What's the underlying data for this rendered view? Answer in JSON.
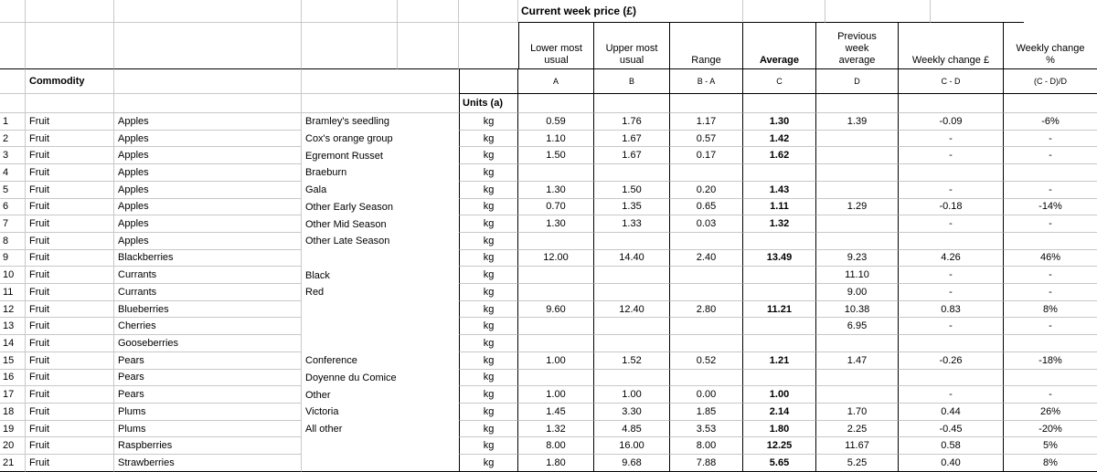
{
  "title": "Current week price (£)",
  "left_header": {
    "commodity": "Commodity",
    "units": "Units (a)"
  },
  "columns": [
    {
      "label": "Lower most\nusual",
      "letter": "A"
    },
    {
      "label": "Upper most\nusual",
      "letter": "B"
    },
    {
      "label": "Range",
      "letter": "B - A"
    },
    {
      "label": "Average",
      "letter": "C"
    },
    {
      "label": "Previous\nweek\naverage",
      "letter": "D"
    },
    {
      "label": "Weekly change £",
      "letter": "C - D"
    },
    {
      "label": "Weekly change\n%",
      "letter": "(C - D)/D"
    }
  ],
  "rows": [
    {
      "num": "1",
      "category": "Fruit",
      "type": "Apples",
      "variety": "Bramley's seedling",
      "units": "kg",
      "lower": "0.59",
      "upper": "1.76",
      "range": "1.17",
      "average": "1.30",
      "prev": "1.39",
      "change_gbp": "-0.09",
      "change_pct": "-6%"
    },
    {
      "num": "2",
      "category": "Fruit",
      "type": "Apples",
      "variety": "Cox's orange group",
      "units": "kg",
      "lower": "1.10",
      "upper": "1.67",
      "range": "0.57",
      "average": "1.42",
      "prev": "",
      "change_gbp": "-",
      "change_pct": "-"
    },
    {
      "num": "3",
      "category": "Fruit",
      "type": "Apples",
      "variety": "Egremont Russet",
      "units": "kg",
      "lower": "1.50",
      "upper": "1.67",
      "range": "0.17",
      "average": "1.62",
      "prev": "",
      "change_gbp": "-",
      "change_pct": "-"
    },
    {
      "num": "4",
      "category": "Fruit",
      "type": "Apples",
      "variety": "Braeburn",
      "units": "kg",
      "lower": "",
      "upper": "",
      "range": "",
      "average": "",
      "prev": "",
      "change_gbp": "",
      "change_pct": ""
    },
    {
      "num": "5",
      "category": "Fruit",
      "type": "Apples",
      "variety": "Gala",
      "units": "kg",
      "lower": "1.30",
      "upper": "1.50",
      "range": "0.20",
      "average": "1.43",
      "prev": "",
      "change_gbp": "-",
      "change_pct": "-"
    },
    {
      "num": "6",
      "category": "Fruit",
      "type": "Apples",
      "variety": "Other Early Season",
      "units": "kg",
      "lower": "0.70",
      "upper": "1.35",
      "range": "0.65",
      "average": "1.11",
      "prev": "1.29",
      "change_gbp": "-0.18",
      "change_pct": "-14%"
    },
    {
      "num": "7",
      "category": "Fruit",
      "type": "Apples",
      "variety": "Other Mid Season",
      "units": "kg",
      "lower": "1.30",
      "upper": "1.33",
      "range": "0.03",
      "average": "1.32",
      "prev": "",
      "change_gbp": "-",
      "change_pct": "-"
    },
    {
      "num": "8",
      "category": "Fruit",
      "type": "Apples",
      "variety": "Other Late Season",
      "units": "kg",
      "lower": "",
      "upper": "",
      "range": "",
      "average": "",
      "prev": "",
      "change_gbp": "",
      "change_pct": ""
    },
    {
      "num": "9",
      "category": "Fruit",
      "type": "Blackberries",
      "variety": "",
      "units": "kg",
      "lower": "12.00",
      "upper": "14.40",
      "range": "2.40",
      "average": "13.49",
      "prev": "9.23",
      "change_gbp": "4.26",
      "change_pct": "46%"
    },
    {
      "num": "10",
      "category": "Fruit",
      "type": "Currants",
      "variety": "Black",
      "units": "kg",
      "lower": "",
      "upper": "",
      "range": "",
      "average": "",
      "prev": "11.10",
      "change_gbp": "-",
      "change_pct": "-"
    },
    {
      "num": "11",
      "category": "Fruit",
      "type": "Currants",
      "variety": "Red",
      "units": "kg",
      "lower": "",
      "upper": "",
      "range": "",
      "average": "",
      "prev": "9.00",
      "change_gbp": "-",
      "change_pct": "-"
    },
    {
      "num": "12",
      "category": "Fruit",
      "type": "Blueberries",
      "variety": "",
      "units": "kg",
      "lower": "9.60",
      "upper": "12.40",
      "range": "2.80",
      "average": "11.21",
      "prev": "10.38",
      "change_gbp": "0.83",
      "change_pct": "8%"
    },
    {
      "num": "13",
      "category": "Fruit",
      "type": "Cherries",
      "variety": "",
      "units": "kg",
      "lower": "",
      "upper": "",
      "range": "",
      "average": "",
      "prev": "6.95",
      "change_gbp": "-",
      "change_pct": "-"
    },
    {
      "num": "14",
      "category": "Fruit",
      "type": "Gooseberries",
      "variety": "",
      "units": "kg",
      "lower": "",
      "upper": "",
      "range": "",
      "average": "",
      "prev": "",
      "change_gbp": "",
      "change_pct": ""
    },
    {
      "num": "15",
      "category": "Fruit",
      "type": "Pears",
      "variety": "Conference",
      "units": "kg",
      "lower": "1.00",
      "upper": "1.52",
      "range": "0.52",
      "average": "1.21",
      "prev": "1.47",
      "change_gbp": "-0.26",
      "change_pct": "-18%"
    },
    {
      "num": "16",
      "category": "Fruit",
      "type": "Pears",
      "variety": "Doyenne du Comice",
      "units": "kg",
      "lower": "",
      "upper": "",
      "range": "",
      "average": "",
      "prev": "",
      "change_gbp": "",
      "change_pct": ""
    },
    {
      "num": "17",
      "category": "Fruit",
      "type": "Pears",
      "variety": "Other",
      "units": "kg",
      "lower": "1.00",
      "upper": "1.00",
      "range": "0.00",
      "average": "1.00",
      "prev": "",
      "change_gbp": "-",
      "change_pct": "-"
    },
    {
      "num": "18",
      "category": "Fruit",
      "type": "Plums",
      "variety": "Victoria",
      "units": "kg",
      "lower": "1.45",
      "upper": "3.30",
      "range": "1.85",
      "average": "2.14",
      "prev": "1.70",
      "change_gbp": "0.44",
      "change_pct": "26%"
    },
    {
      "num": "19",
      "category": "Fruit",
      "type": "Plums",
      "variety": "All other",
      "units": "kg",
      "lower": "1.32",
      "upper": "4.85",
      "range": "3.53",
      "average": "1.80",
      "prev": "2.25",
      "change_gbp": "-0.45",
      "change_pct": "-20%"
    },
    {
      "num": "20",
      "category": "Fruit",
      "type": "Raspberries",
      "variety": "",
      "units": "kg",
      "lower": "8.00",
      "upper": "16.00",
      "range": "8.00",
      "average": "12.25",
      "prev": "11.67",
      "change_gbp": "0.58",
      "change_pct": "5%"
    },
    {
      "num": "21",
      "category": "Fruit",
      "type": "Strawberries",
      "variety": "",
      "units": "kg",
      "lower": "1.80",
      "upper": "9.68",
      "range": "7.88",
      "average": "5.65",
      "prev": "5.25",
      "change_gbp": "0.40",
      "change_pct": "8%"
    }
  ],
  "colors": {
    "grid": "#c8c8c8",
    "border": "#000000",
    "text": "#000000",
    "background": "#ffffff"
  }
}
